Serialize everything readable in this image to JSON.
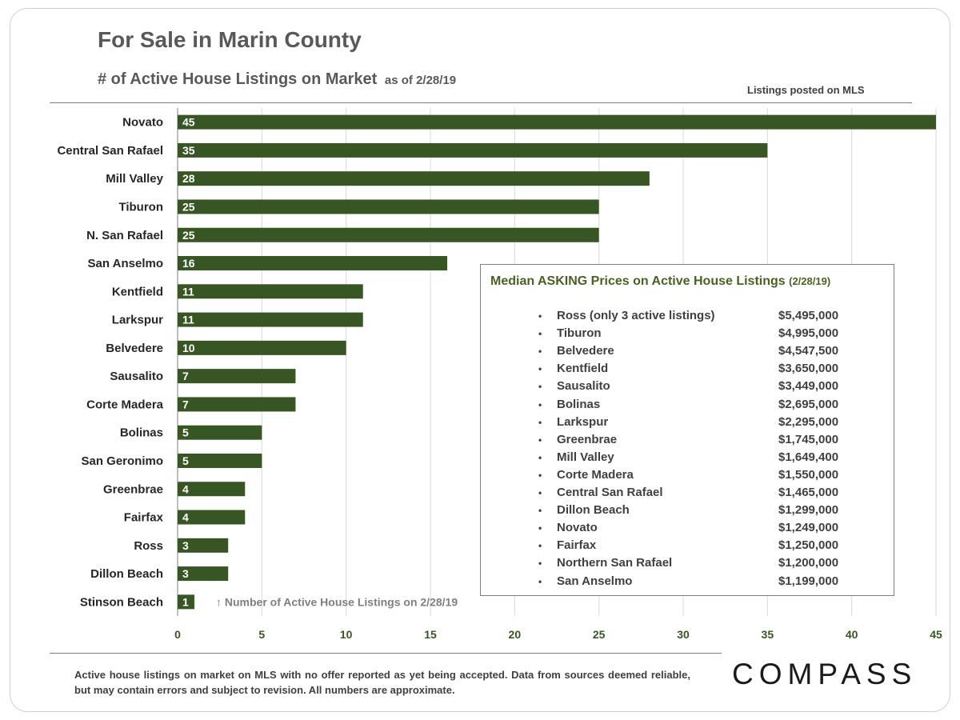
{
  "chart_data": {
    "type": "bar",
    "orientation": "horizontal",
    "title": "For Sale in Marin County",
    "subtitle": "# of Active House Listings on Market",
    "subtitle_date": "as of 2/28/19",
    "source_note": "Listings posted on MLS",
    "bar_annotation": "Number of Active House Listings on 2/28/19",
    "categories": [
      "Novato",
      "Central San Rafael",
      "Mill Valley",
      "Tiburon",
      "N. San Rafael",
      "San Anselmo",
      "Kentfield",
      "Larkspur",
      "Belvedere",
      "Sausalito",
      "Corte Madera",
      "Bolinas",
      "San Geronimo",
      "Greenbrae",
      "Fairfax",
      "Ross",
      "Dillon Beach",
      "Stinson Beach"
    ],
    "values": [
      45,
      35,
      28,
      25,
      25,
      16,
      11,
      11,
      10,
      7,
      7,
      5,
      5,
      4,
      4,
      3,
      3,
      1
    ],
    "xlim": [
      0,
      45
    ],
    "xticks": [
      0,
      5,
      10,
      15,
      20,
      25,
      30,
      35,
      40,
      45
    ],
    "grid": true,
    "bar_color": "#375623",
    "label_color": "#ffffff",
    "tick_color": "#375623"
  },
  "inset": {
    "title": "Median ASKING Prices on Active House Listings",
    "title_date": "(2/28/19)",
    "bullet": "•",
    "items": [
      {
        "name": "Ross (only 3 active listings)",
        "price": "$5,495,000"
      },
      {
        "name": "Tiburon",
        "price": "$4,995,000"
      },
      {
        "name": "Belvedere",
        "price": "$4,547,500"
      },
      {
        "name": "Kentfield",
        "price": "$3,650,000"
      },
      {
        "name": "Sausalito",
        "price": "$3,449,000"
      },
      {
        "name": "Bolinas",
        "price": "$2,695,000"
      },
      {
        "name": "Larkspur",
        "price": "$2,295,000"
      },
      {
        "name": "Greenbrae",
        "price": "$1,745,000"
      },
      {
        "name": "Mill Valley",
        "price": "$1,649,400"
      },
      {
        "name": "Corte Madera",
        "price": "$1,550,000"
      },
      {
        "name": "Central San Rafael",
        "price": "$1,465,000"
      },
      {
        "name": "Dillon Beach",
        "price": "$1,299,000"
      },
      {
        "name": "Novato",
        "price": "$1,249,000"
      },
      {
        "name": "Fairfax",
        "price": "$1,250,000"
      },
      {
        "name": "Northern San Rafael",
        "price": "$1,200,000"
      },
      {
        "name": "San Anselmo",
        "price": "$1,199,000"
      }
    ]
  },
  "footnote": "Active house listings on market on MLS with no offer reported as yet being accepted. Data from sources deemed reliable, but may contain errors and subject to revision. All numbers are approximate.",
  "logo": "COMPASS",
  "colors": {
    "title": "#595959",
    "accent": "#4b6122",
    "bar": "#375623"
  }
}
